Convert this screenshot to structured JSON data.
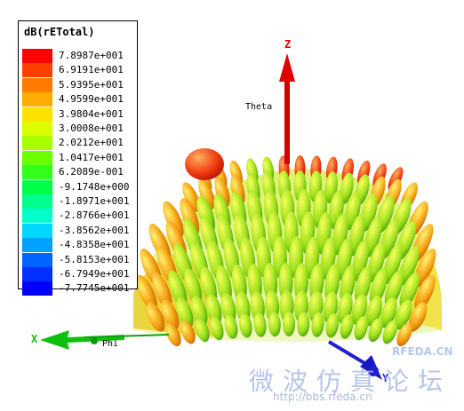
{
  "legend": {
    "title": "dB(rETotal)",
    "entries": [
      {
        "value": "7.8987e+001",
        "color": "#ff0000"
      },
      {
        "value": "6.9191e+001",
        "color": "#ff3f00"
      },
      {
        "value": "5.9395e+001",
        "color": "#ff7a00"
      },
      {
        "value": "4.9599e+001",
        "color": "#ffae00"
      },
      {
        "value": "3.9804e+001",
        "color": "#ffe100"
      },
      {
        "value": "3.0008e+001",
        "color": "#dbff00"
      },
      {
        "value": "2.0212e+001",
        "color": "#a8ff00"
      },
      {
        "value": "1.0417e+001",
        "color": "#6cff00"
      },
      {
        "value": "6.2089e-001",
        "color": "#33ff1a"
      },
      {
        "value": "-9.1748e+000",
        "color": "#00ff4a"
      },
      {
        "value": "-1.8971e+001",
        "color": "#00ff8c"
      },
      {
        "value": "-2.8766e+001",
        "color": "#00ffc8"
      },
      {
        "value": "-3.8562e+001",
        "color": "#00d8ff"
      },
      {
        "value": "-4.8358e+001",
        "color": "#00a0ff"
      },
      {
        "value": "-5.8153e+001",
        "color": "#0064ff"
      },
      {
        "value": "-6.7949e+001",
        "color": "#0030ff"
      },
      {
        "value": "-7.7745e+001",
        "color": "#0000ff"
      }
    ]
  },
  "axes": {
    "z_label": "Z",
    "x_label": "X",
    "y_label": "Y",
    "theta_label": "Theta",
    "phi_label": "Phi",
    "z_color": "#e00000",
    "x_color": "#10c010",
    "y_color": "#2020d0"
  },
  "watermark": {
    "rfeda": "RFEDA.CN",
    "forum": "微波仿真论坛",
    "url": "http://bbs.rfeda.cn"
  }
}
